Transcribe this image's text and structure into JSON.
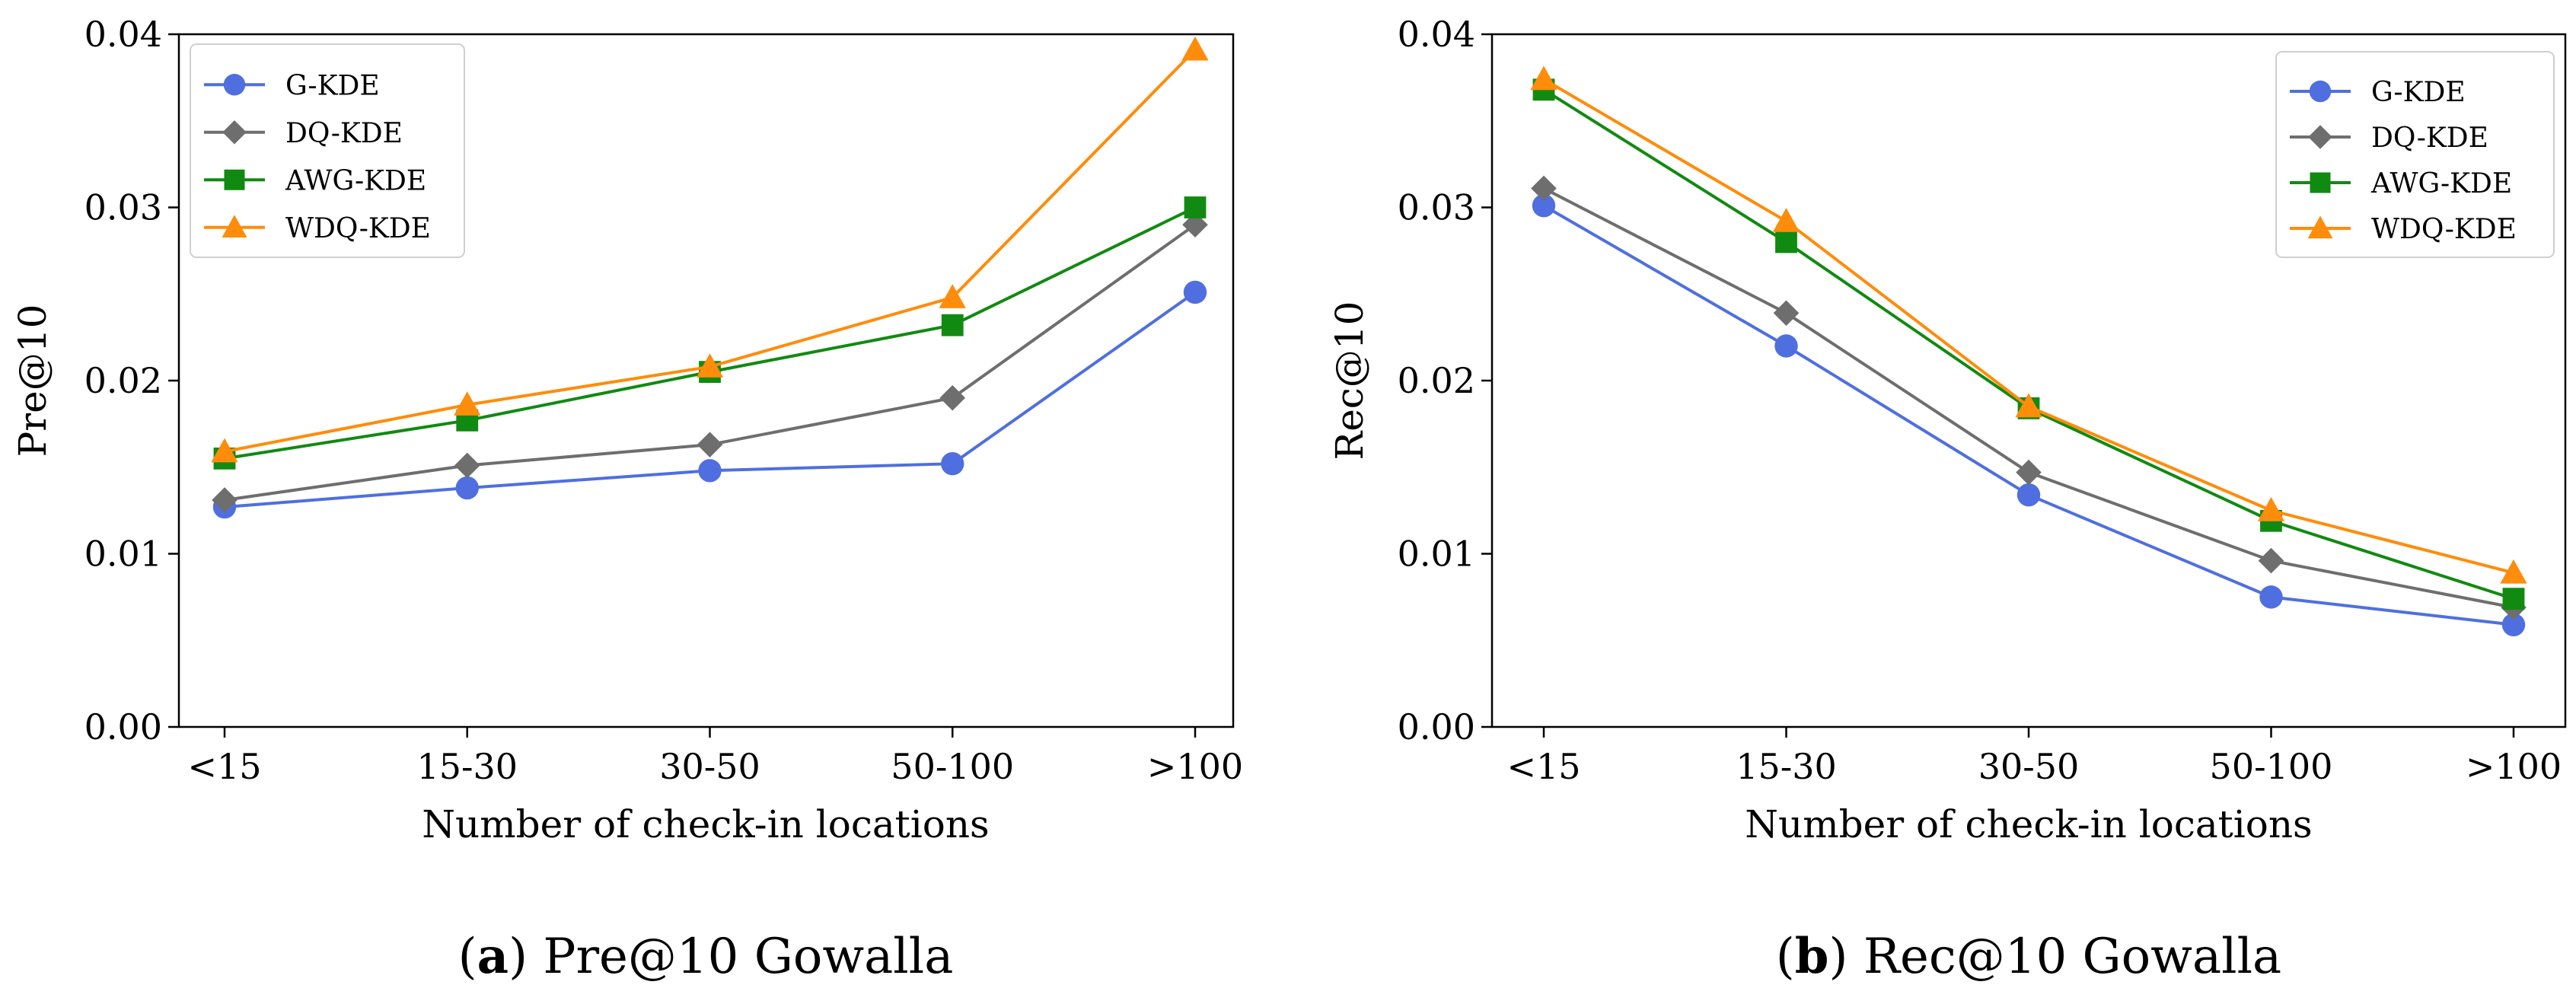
{
  "colors": {
    "G-KDE": "#4f6fe0",
    "DQ-KDE": "#6e6e6e",
    "AWG-KDE": "#118a11",
    "WDQ-KDE": "#ff8c0a"
  },
  "chart_data": [
    {
      "type": "line",
      "title": "",
      "xlabel": "Number of check-in locations",
      "ylabel": "Pre@10",
      "categories": [
        "<15",
        "15-30",
        "30-50",
        "50-100",
        ">100"
      ],
      "ylim": [
        0,
        0.04
      ],
      "yticks": [
        "0.00",
        "0.01",
        "0.02",
        "0.03",
        "0.04"
      ],
      "yticks_values": [
        0,
        0.01,
        0.02,
        0.03,
        0.04
      ],
      "legend_position": "top-left",
      "caption": {
        "letter": "a",
        "text": "Pre@10 Gowalla"
      },
      "series": [
        {
          "name": "G-KDE",
          "marker": "circle",
          "values": [
            0.0127,
            0.0138,
            0.0148,
            0.0152,
            0.0251
          ]
        },
        {
          "name": "DQ-KDE",
          "marker": "diamond",
          "values": [
            0.0131,
            0.0151,
            0.0163,
            0.019,
            0.029
          ]
        },
        {
          "name": "AWG-KDE",
          "marker": "square",
          "values": [
            0.0155,
            0.0177,
            0.0205,
            0.0232,
            0.03
          ]
        },
        {
          "name": "WDQ-KDE",
          "marker": "triangle",
          "values": [
            0.0159,
            0.0186,
            0.0208,
            0.0248,
            0.0391
          ]
        }
      ]
    },
    {
      "type": "line",
      "title": "",
      "xlabel": "Number of check-in locations",
      "ylabel": "Rec@10",
      "categories": [
        "<15",
        "15-30",
        "30-50",
        "50-100",
        ">100"
      ],
      "ylim": [
        0,
        0.04
      ],
      "yticks": [
        "0.00",
        "0.01",
        "0.02",
        "0.03",
        "0.04"
      ],
      "yticks_values": [
        0,
        0.01,
        0.02,
        0.03,
        0.04
      ],
      "legend_position": "top-right",
      "caption": {
        "letter": "b",
        "text": "Rec@10 Gowalla"
      },
      "series": [
        {
          "name": "G-KDE",
          "marker": "circle",
          "values": [
            0.0301,
            0.022,
            0.0134,
            0.0075,
            0.0059
          ]
        },
        {
          "name": "DQ-KDE",
          "marker": "diamond",
          "values": [
            0.0311,
            0.0239,
            0.0147,
            0.0096,
            0.0069
          ]
        },
        {
          "name": "AWG-KDE",
          "marker": "square",
          "values": [
            0.0368,
            0.028,
            0.0184,
            0.0119,
            0.0074
          ]
        },
        {
          "name": "WDQ-KDE",
          "marker": "triangle",
          "values": [
            0.0374,
            0.0292,
            0.0185,
            0.0125,
            0.0089
          ]
        }
      ]
    }
  ]
}
